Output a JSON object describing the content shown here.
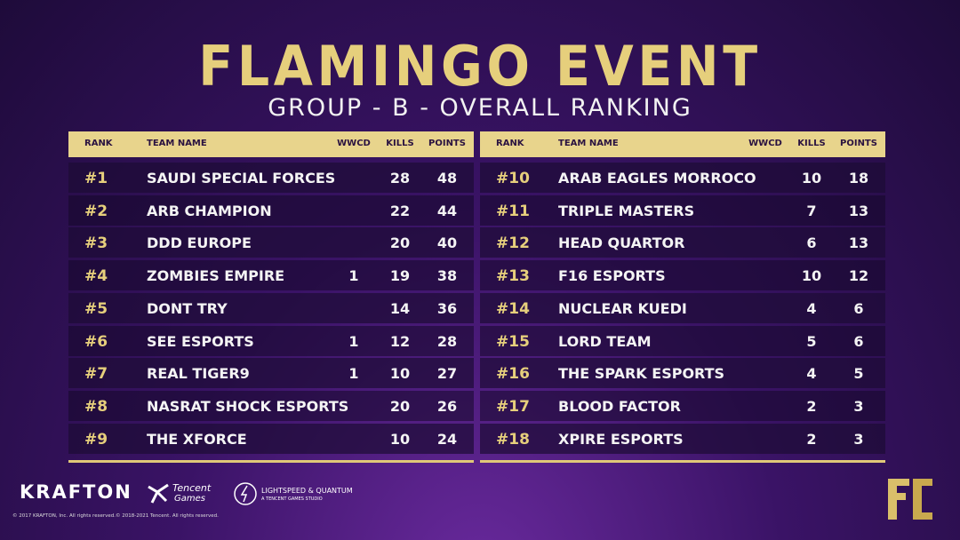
{
  "header": {
    "title": "FLAMINGO EVENT",
    "subtitle": "GROUP - B - OVERALL RANKING"
  },
  "tables": [
    {
      "columns": [
        "RANK",
        "TEAM NAME",
        "WWCD",
        "KILLS",
        "POINTS"
      ],
      "rows": [
        {
          "rank": "#1",
          "team": "SAUDI SPECIAL FORCES",
          "kills": 28,
          "points": 48
        },
        {
          "rank": "#2",
          "team": "ARB CHAMPION",
          "kills": 22,
          "points": 44
        },
        {
          "rank": "#3",
          "team": "DDD EUROPE",
          "kills": 20,
          "points": 40
        },
        {
          "rank": "#4",
          "team": "ZOMBIES EMPIRE",
          "wwcd": 1,
          "kills": 19,
          "points": 38
        },
        {
          "rank": "#5",
          "team": "DONT TRY",
          "kills": 14,
          "points": 36
        },
        {
          "rank": "#6",
          "team": "SEE ESPORTS",
          "wwcd": 1,
          "kills": 12,
          "points": 28
        },
        {
          "rank": "#7",
          "team": "REAL TIGER9",
          "wwcd": 1,
          "kills": 10,
          "points": 27
        },
        {
          "rank": "#8",
          "team": "NASRAT SHOCK ESPORTS",
          "kills": 20,
          "points": 26
        },
        {
          "rank": "#9",
          "team": "THE XFORCE",
          "kills": 10,
          "points": 24
        }
      ]
    },
    {
      "columns": [
        "RANK",
        "TEAM NAME",
        "WWCD",
        "KILLS",
        "POINTS"
      ],
      "rows": [
        {
          "rank": "#10",
          "team": "ARAB EAGLES MORROCO",
          "kills": 10,
          "points": 18
        },
        {
          "rank": "#11",
          "team": "TRIPLE MASTERS",
          "kills": 7,
          "points": 13
        },
        {
          "rank": "#12",
          "team": "HEAD QUARTOR",
          "kills": 6,
          "points": 13
        },
        {
          "rank": "#13",
          "team": "F16 ESPORTS",
          "kills": 10,
          "points": 12
        },
        {
          "rank": "#14",
          "team": "NUCLEAR KUEDI",
          "kills": 4,
          "points": 6
        },
        {
          "rank": "#15",
          "team": "LORD TEAM",
          "kills": 5,
          "points": 6
        },
        {
          "rank": "#16",
          "team": "THE SPARK ESPORTS",
          "kills": 4,
          "points": 5
        },
        {
          "rank": "#17",
          "team": "BLOOD FACTOR",
          "kills": 2,
          "points": 3
        },
        {
          "rank": "#18",
          "team": "XPIRE ESPORTS",
          "kills": 2,
          "points": 3
        }
      ]
    }
  ],
  "footer": {
    "krafton": "KRAFTON",
    "tencent": "Tencent",
    "tencent_sub": "Games",
    "lightspeed": "LIGHTSPEED & QUANTUM",
    "lightspeed_sub": "A TENCENT GAMES STUDIO",
    "copyright_krafton": "© 2017 KRAFTON, Inc. All rights reserved.",
    "copyright_tencent": "© 2018-2021 Tencent. All rights reserved."
  }
}
